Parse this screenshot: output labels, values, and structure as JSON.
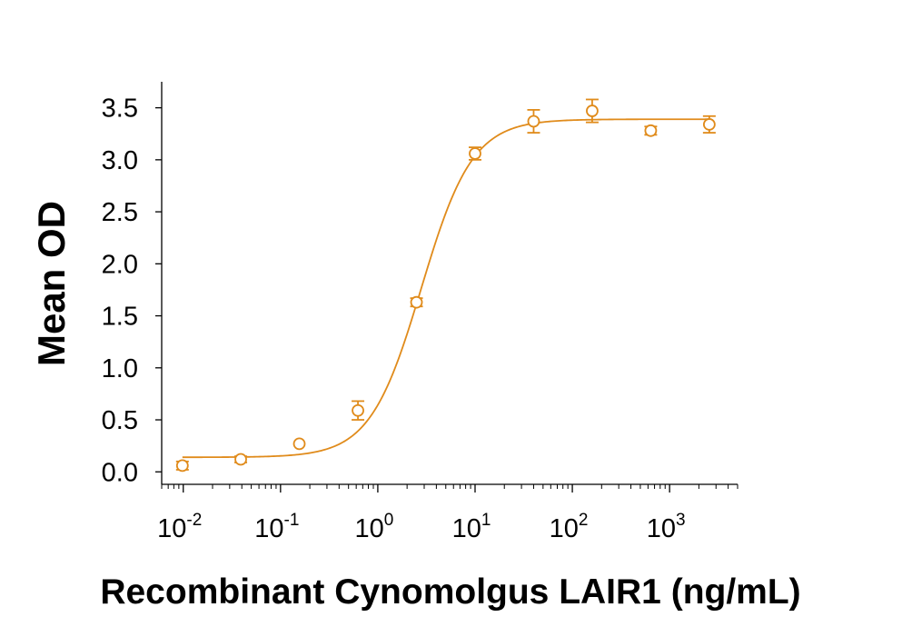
{
  "chart_data": {
    "type": "scatter",
    "title": "",
    "xlabel": "Recombinant Cynomolgus LAIR1 (ng/mL)",
    "ylabel": "Mean OD",
    "xscale": "log",
    "xlim": [
      0.006,
      5000
    ],
    "ylim": [
      -0.12,
      3.75
    ],
    "x_ticks": [
      {
        "value": 0.01,
        "base": "10",
        "exp": "-2"
      },
      {
        "value": 0.1,
        "base": "10",
        "exp": "-1"
      },
      {
        "value": 1,
        "base": "10",
        "exp": "0"
      },
      {
        "value": 10,
        "base": "10",
        "exp": "1"
      },
      {
        "value": 100,
        "base": "10",
        "exp": "2"
      },
      {
        "value": 1000,
        "base": "10",
        "exp": "3"
      }
    ],
    "y_ticks": [
      "0.0",
      "0.5",
      "1.0",
      "1.5",
      "2.0",
      "2.5",
      "3.0",
      "3.5"
    ],
    "grid": false,
    "legend": "none",
    "color": "#E08B1B",
    "series": [
      {
        "x": [
          0.0098,
          0.039,
          0.156,
          0.625,
          2.5,
          10,
          40,
          160,
          640,
          2560
        ],
        "y": [
          0.06,
          0.12,
          0.27,
          0.59,
          1.63,
          3.06,
          3.37,
          3.47,
          3.28,
          3.34
        ],
        "error": [
          0.04,
          0.03,
          0.0,
          0.09,
          0.04,
          0.06,
          0.11,
          0.11,
          0.04,
          0.08
        ]
      }
    ],
    "fit_curve": {
      "type": "4PL",
      "bottom": 0.14,
      "top": 3.39,
      "ec50": 2.8,
      "hill": 1.65
    }
  }
}
